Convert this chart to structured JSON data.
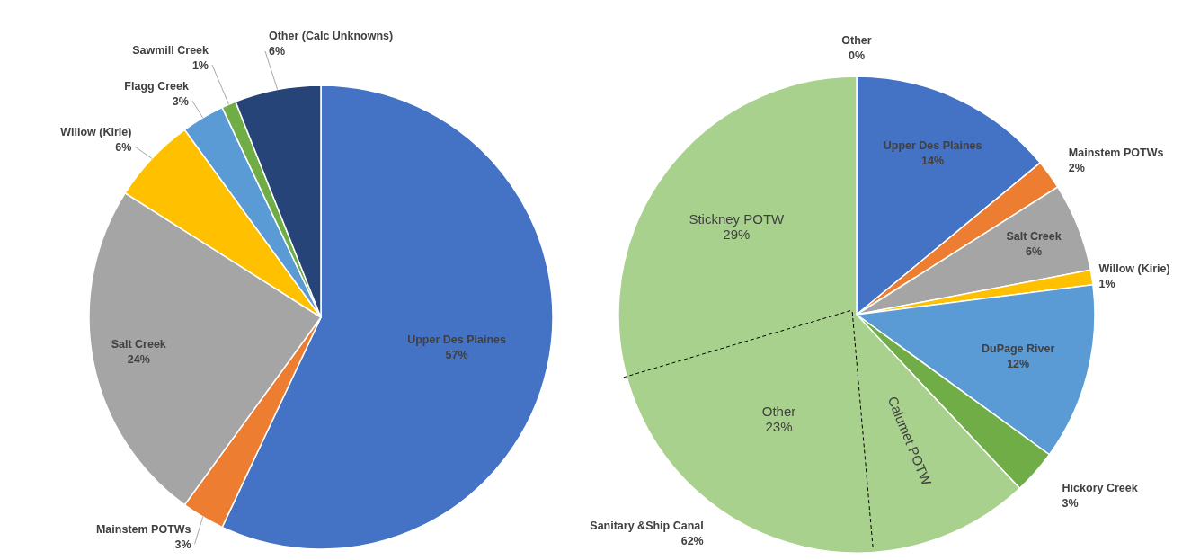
{
  "chart_data": [
    {
      "type": "pie",
      "categories": [
        "Upper Des Plaines",
        "Mainstem POTWs",
        "Salt Creek",
        "Willow (Kirie)",
        "Flagg Creek",
        "Sawmill Creek",
        "Other (Calc Unknowns)"
      ],
      "values": [
        57,
        3,
        24,
        6,
        3,
        1,
        6
      ],
      "value_labels": [
        "57%",
        "3%",
        "24%",
        "6%",
        "3%",
        "1%",
        "6%"
      ],
      "colors": [
        "#4472c4",
        "#ed7d31",
        "#a5a5a5",
        "#ffc000",
        "#5b9bd5",
        "#70ad47",
        "#264478"
      ]
    },
    {
      "type": "pie",
      "categories": [
        "Upper Des Plaines",
        "Mainstem POTWs",
        "Salt Creek",
        "Willow (Kirie)",
        "DuPage River",
        "Hickory Creek",
        "Sanitary &Ship Canal",
        "Other"
      ],
      "values": [
        14,
        2,
        6,
        1,
        12,
        3,
        62,
        0
      ],
      "value_labels": [
        "14%",
        "2%",
        "6%",
        "1%",
        "12%",
        "3%",
        "62%",
        "0%"
      ],
      "colors": [
        "#4472c4",
        "#ed7d31",
        "#a5a5a5",
        "#ffc000",
        "#5b9bd5",
        "#70ad47",
        "#a9d18e",
        "#c00000"
      ],
      "annotations": [
        "Stickney POTW\n29%",
        "Other\n23%",
        "Calumet POTW"
      ]
    }
  ]
}
